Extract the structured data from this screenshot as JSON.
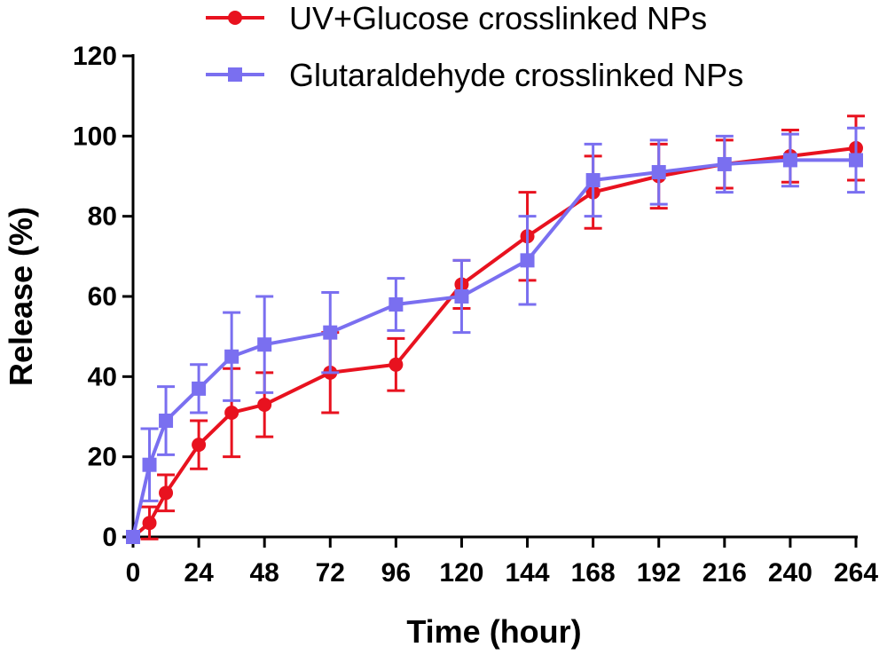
{
  "chart_data": {
    "type": "line",
    "title": "",
    "xlabel": "Time (hour)",
    "ylabel": "Release (%)",
    "xlim": [
      0,
      264
    ],
    "ylim": [
      0,
      120
    ],
    "xticks": [
      0,
      24,
      48,
      72,
      96,
      120,
      144,
      168,
      192,
      216,
      240,
      264
    ],
    "yticks": [
      0,
      20,
      40,
      60,
      80,
      100,
      120
    ],
    "grid": false,
    "legend_position": "top-right",
    "series": [
      {
        "name": "UV+Glucose crosslinked NPs",
        "color": "#e8121f",
        "marker": "circle",
        "x": [
          0,
          6,
          12,
          24,
          36,
          48,
          72,
          96,
          120,
          144,
          168,
          192,
          216,
          240,
          264
        ],
        "y": [
          0,
          3.5,
          11,
          23,
          31,
          33,
          41,
          43,
          63,
          75,
          86,
          90,
          93,
          95,
          97
        ],
        "error": [
          0,
          4,
          4.5,
          6,
          11,
          8,
          10,
          6.5,
          6,
          11,
          9,
          8,
          6,
          6.5,
          8
        ]
      },
      {
        "name": "Glutaraldehyde crosslinked NPs",
        "color": "#7a6ff0",
        "marker": "square",
        "x": [
          0,
          6,
          12,
          24,
          36,
          48,
          72,
          96,
          120,
          144,
          168,
          192,
          216,
          240,
          264
        ],
        "y": [
          0,
          18,
          29,
          37,
          45,
          48,
          51,
          58,
          60,
          69,
          89,
          91,
          93,
          94,
          94
        ],
        "error": [
          0,
          9,
          8.5,
          6,
          11,
          12,
          10,
          6.5,
          9,
          11,
          9,
          8,
          7,
          6.5,
          8
        ]
      }
    ]
  }
}
